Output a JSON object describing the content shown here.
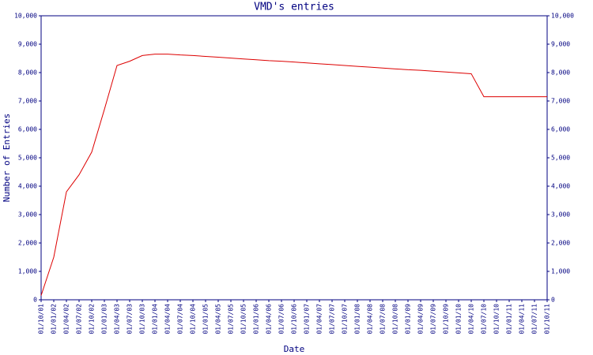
{
  "chart_data": {
    "type": "line",
    "title": "VMD's entries",
    "x_label": "Date",
    "y_label": "Number of Entries",
    "categories": [
      "01/10/01",
      "01/01/02",
      "01/04/02",
      "01/07/02",
      "01/10/02",
      "01/01/03",
      "01/04/03",
      "01/07/03",
      "01/10/03",
      "01/01/04",
      "01/04/04",
      "01/07/04",
      "01/10/04",
      "01/01/05",
      "01/04/05",
      "01/07/05",
      "01/10/05",
      "01/01/06",
      "01/04/06",
      "01/07/06",
      "01/10/06",
      "01/01/07",
      "01/04/07",
      "01/07/07",
      "01/10/07",
      "01/01/08",
      "01/04/08",
      "01/07/08",
      "01/10/08",
      "01/01/09",
      "01/04/09",
      "01/07/09",
      "01/10/09",
      "01/01/10",
      "01/04/10",
      "01/07/10",
      "01/10/10",
      "01/01/11",
      "01/04/11",
      "01/07/11",
      "01/10/11"
    ],
    "series": [
      {
        "name": "entries",
        "color": "#dd0000",
        "values": [
          150,
          1500,
          3800,
          4400,
          5200,
          6700,
          8250,
          8400,
          8600,
          8650,
          8650,
          8620,
          8600,
          8570,
          8540,
          8510,
          8480,
          8450,
          8420,
          8400,
          8370,
          8340,
          8310,
          8280,
          8250,
          8220,
          8190,
          8160,
          8130,
          8100,
          8080,
          8050,
          8020,
          7990,
          7960,
          7150,
          7150,
          7150,
          7150,
          7150,
          7150
        ]
      }
    ],
    "ylim": [
      0,
      10000
    ],
    "yticks": [
      0,
      {
        "value": 1000,
        "label": "1,000"
      },
      {
        "value": 2000,
        "label": "2,000"
      },
      {
        "value": 3000,
        "label": "3,000"
      },
      {
        "value": 4000,
        "label": "4,000"
      },
      {
        "value": 5000,
        "label": "5,000"
      },
      {
        "value": 6000,
        "label": "6,000"
      },
      {
        "value": 7000,
        "label": "7,000"
      },
      {
        "value": 8000,
        "label": "8,000"
      },
      {
        "value": 9000,
        "label": "9,000"
      },
      {
        "value": 10000,
        "label": "10,000"
      }
    ],
    "y2lim": [
      0,
      10000
    ],
    "y2ticks": [
      0,
      {
        "value": 1000,
        "label": "1,000"
      },
      {
        "value": 2000,
        "label": "2,000"
      },
      {
        "value": 3000,
        "label": "3,000"
      },
      {
        "value": 4000,
        "label": "4,000"
      },
      {
        "value": 5000,
        "label": "5,000"
      },
      {
        "value": 6000,
        "label": "6,000"
      },
      {
        "value": 7000,
        "label": "7,000"
      },
      {
        "value": 8000,
        "label": "8,000"
      },
      {
        "value": 9000,
        "label": "9,000"
      },
      {
        "value": 10000,
        "label": "10,000"
      }
    ]
  }
}
